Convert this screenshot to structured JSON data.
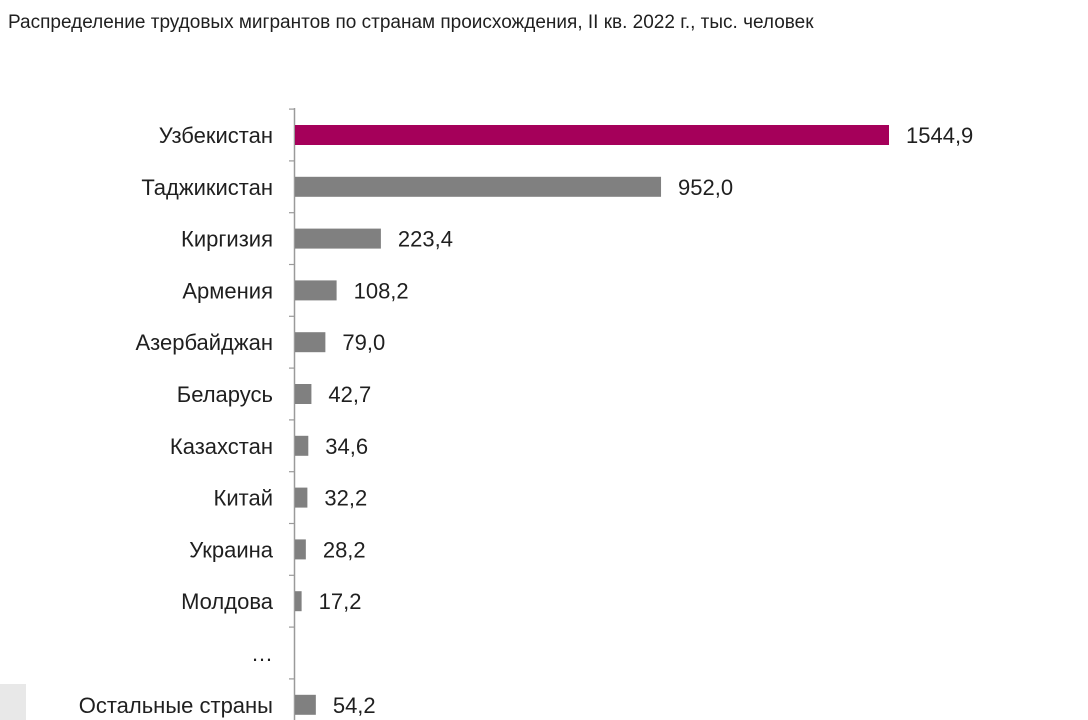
{
  "chart_data": {
    "type": "bar",
    "orientation": "horizontal",
    "title": "Распределение трудовых мигрантов по странам происхождения, II кв. 2022 г., тыс. человек",
    "categories": [
      "Узбекистан",
      "Таджикистан",
      "Киргизия",
      "Армения",
      "Азербайджан",
      "Беларусь",
      "Казахстан",
      "Китай",
      "Украина",
      "Молдова",
      "…",
      "Остальные страны"
    ],
    "values": [
      1544.9,
      952.0,
      223.4,
      108.2,
      79.0,
      42.7,
      34.6,
      32.2,
      28.2,
      17.2,
      null,
      54.2
    ],
    "value_labels": [
      "1544,9",
      "952,0",
      "223,4",
      "108,2",
      "79,0",
      "42,7",
      "34,6",
      "32,2",
      "28,2",
      "17,2",
      "",
      "54,2"
    ],
    "xlim": [
      0,
      1544.9
    ],
    "grid": false,
    "legend": "none",
    "colors": {
      "highlight": "#a5005a",
      "default": "#808080",
      "axis": "#9a9a9a"
    },
    "highlight_index": 0
  }
}
